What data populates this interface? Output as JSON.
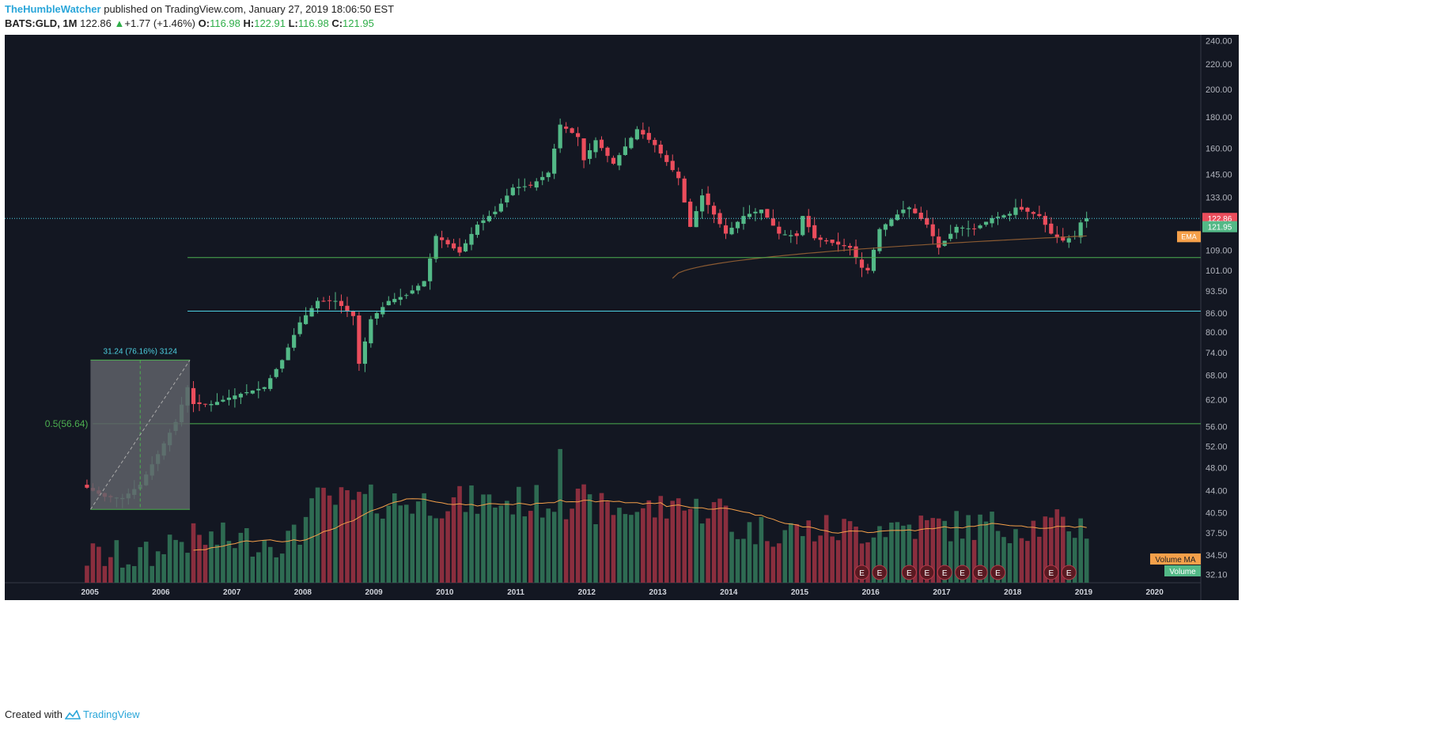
{
  "header": {
    "author": "TheHumbleWatcher",
    "published_text": "published on TradingView.com, January 27, 2019 18:06:50 EST",
    "symbol": "BATS:GLD, 1M",
    "last": "122.86",
    "change": "+1.77 (+1.46%)",
    "o_label": "O:",
    "o": "116.98",
    "h_label": "H:",
    "h": "122.91",
    "l_label": "L:",
    "l": "116.98",
    "c_label": "C:",
    "c": "121.95"
  },
  "footer": {
    "created_with": "Created with",
    "brand": "TradingView"
  },
  "colors": {
    "background": "#131722",
    "up": "#53b987",
    "down": "#eb4d5c",
    "vol_up": "#2e6b52",
    "vol_down": "#8a2e3e",
    "ema": "#8a5a32",
    "vol_ma": "#f5a04a",
    "green_line": "#4caf50",
    "cyan_line": "#4dd0e1",
    "measure_box": "#5f6169"
  },
  "chart_data": {
    "type": "candlestick",
    "symbol": "BATS:GLD",
    "interval": "1M",
    "y_scale": "log",
    "ylim": [
      31.0,
      250.0
    ],
    "y_ticks": [
      "240.00",
      "220.00",
      "200.00",
      "180.00",
      "160.00",
      "145.00",
      "133.00",
      "122.86",
      "121.95",
      "109.00",
      "101.00",
      "93.50",
      "86.00",
      "80.00",
      "74.00",
      "68.00",
      "62.00",
      "56.00",
      "52.00",
      "48.00",
      "44.00",
      "40.50",
      "37.50",
      "34.50",
      "32.10"
    ],
    "x_ticks": [
      "2005",
      "2006",
      "2007",
      "2008",
      "2009",
      "2010",
      "2011",
      "2012",
      "2013",
      "2014",
      "2015",
      "2016",
      "2017",
      "2018",
      "2019",
      "2020"
    ],
    "xlim": [
      2003.8,
      2020.65
    ],
    "anchors": [
      [
        "2004-11",
        45.0
      ],
      [
        "2005-03",
        43.0
      ],
      [
        "2005-06",
        42.8
      ],
      [
        "2005-09",
        45.0
      ],
      [
        "2005-12",
        50.5
      ],
      [
        "2006-03",
        57.0
      ],
      [
        "2006-05",
        65.0
      ],
      [
        "2006-06",
        61.0
      ],
      [
        "2006-09",
        61.0
      ],
      [
        "2007-01",
        63.0
      ],
      [
        "2007-06",
        65.0
      ],
      [
        "2007-09",
        72.0
      ],
      [
        "2007-12",
        83.0
      ],
      [
        "2008-03",
        90.0
      ],
      [
        "2008-06",
        90.0
      ],
      [
        "2008-09",
        85.0
      ],
      [
        "2008-10",
        71.0
      ],
      [
        "2008-12",
        84.0
      ],
      [
        "2009-03",
        90.0
      ],
      [
        "2009-06",
        92.0
      ],
      [
        "2009-09",
        97.0
      ],
      [
        "2009-11",
        115.0
      ],
      [
        "2010-03",
        108.0
      ],
      [
        "2010-06",
        120.0
      ],
      [
        "2010-09",
        126.0
      ],
      [
        "2010-12",
        138.0
      ],
      [
        "2011-03",
        139.0
      ],
      [
        "2011-06",
        146.0
      ],
      [
        "2011-08",
        175.0
      ],
      [
        "2011-11",
        167.0
      ],
      [
        "2011-12",
        153.0
      ],
      [
        "2012-02",
        165.0
      ],
      [
        "2012-05",
        151.0
      ],
      [
        "2012-09",
        172.0
      ],
      [
        "2012-12",
        162.0
      ],
      [
        "2013-02",
        152.0
      ],
      [
        "2013-04",
        143.0
      ],
      [
        "2013-06",
        119.0
      ],
      [
        "2013-08",
        134.0
      ],
      [
        "2013-12",
        116.0
      ],
      [
        "2014-03",
        124.0
      ],
      [
        "2014-06",
        127.0
      ],
      [
        "2014-09",
        116.0
      ],
      [
        "2014-12",
        115.0
      ],
      [
        "2015-01",
        124.0
      ],
      [
        "2015-03",
        114.0
      ],
      [
        "2015-06",
        112.0
      ],
      [
        "2015-09",
        110.0
      ],
      [
        "2015-11",
        102.0
      ],
      [
        "2015-12",
        101.0
      ],
      [
        "2016-02",
        118.0
      ],
      [
        "2016-06",
        127.0
      ],
      [
        "2016-07",
        128.0
      ],
      [
        "2016-10",
        120.0
      ],
      [
        "2016-12",
        110.0
      ],
      [
        "2017-03",
        119.0
      ],
      [
        "2017-06",
        118.0
      ],
      [
        "2017-09",
        123.0
      ],
      [
        "2017-12",
        125.0
      ],
      [
        "2018-01",
        128.0
      ],
      [
        "2018-03",
        126.0
      ],
      [
        "2018-05",
        124.0
      ],
      [
        "2018-07",
        116.0
      ],
      [
        "2018-09",
        113.0
      ],
      [
        "2018-11",
        115.0
      ],
      [
        "2018-12",
        121.0
      ],
      [
        "2019-01",
        122.86
      ]
    ],
    "overlays": {
      "horizontal_lines": [
        {
          "value": 106.0,
          "color": "green",
          "from": "2006-05"
        },
        {
          "value": 86.6,
          "color": "cyan",
          "from": "2006-05"
        },
        {
          "value": 56.64,
          "color": "green",
          "from": "2005-01",
          "label": "0.5(56.64)"
        }
      ],
      "price_range_measure": {
        "label": "31.24 (76.16%) 3124",
        "from": "2005-01",
        "to": "2006-05",
        "low": 41.0,
        "high": 72.0
      },
      "last_price_line": 122.86,
      "price_labels": [
        {
          "value": "122.86",
          "color": "#eb4d5c"
        },
        {
          "value": "121.95",
          "color": "#53b987"
        },
        {
          "value": "EMA",
          "price": 114.0,
          "color": "#f5a04a",
          "offset": true
        }
      ],
      "ema": {
        "from": "2013-03",
        "start": 98.0,
        "end": 115.0
      },
      "volume_labels": [
        "Volume MA",
        "Volume"
      ],
      "earnings_markers": [
        "2015-11",
        "2016-02",
        "2016-07",
        "2016-10",
        "2017-01",
        "2017-04",
        "2017-07",
        "2017-10",
        "2018-07",
        "2018-10"
      ],
      "earnings_label": "E"
    }
  }
}
